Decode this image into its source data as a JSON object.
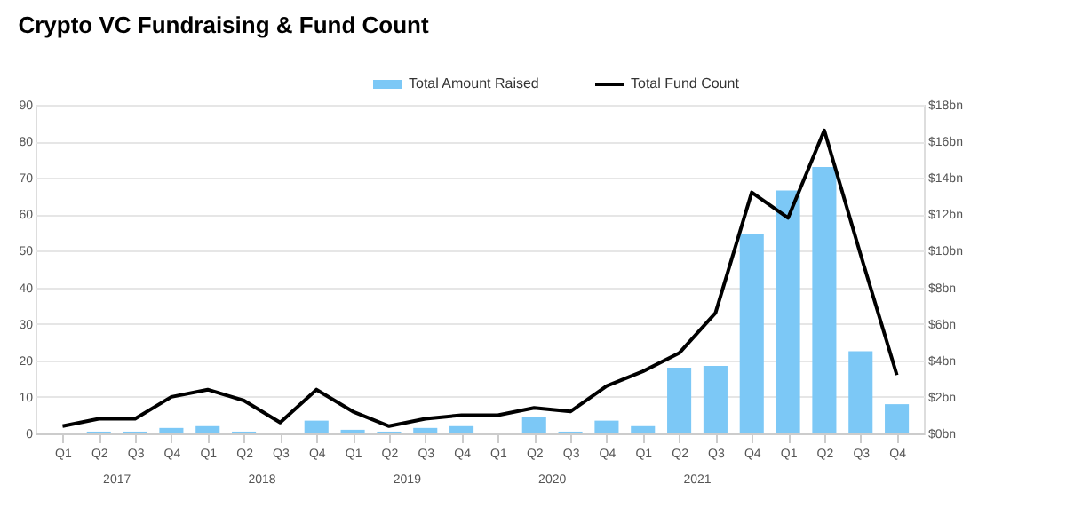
{
  "chart_data": {
    "type": "bar",
    "title": "Crypto VC Fundraising & Fund Count",
    "categories": [
      "Q1",
      "Q2",
      "Q3",
      "Q4",
      "Q1",
      "Q2",
      "Q3",
      "Q4",
      "Q1",
      "Q2",
      "Q3",
      "Q4",
      "Q1",
      "Q2",
      "Q3",
      "Q4",
      "Q1",
      "Q2",
      "Q3",
      "Q4",
      "Q1",
      "Q2",
      "Q3",
      "Q4"
    ],
    "series": [
      {
        "name": "Total Amount Raised",
        "axis": "y2",
        "color": "#7cc8f6",
        "values": [
          0.0,
          0.1,
          0.1,
          0.3,
          0.4,
          0.1,
          0.0,
          0.7,
          0.2,
          0.1,
          0.3,
          0.4,
          0.0,
          0.9,
          0.1,
          0.7,
          0.4,
          3.6,
          3.7,
          10.9,
          13.3,
          14.6,
          4.5,
          1.6
        ]
      },
      {
        "name": "Total Fund Count",
        "type": "line",
        "color": "#000000",
        "values": [
          2,
          4,
          4,
          10,
          12,
          9,
          3,
          12,
          6,
          2,
          4,
          5,
          5,
          7,
          6,
          13,
          17,
          22,
          33,
          66,
          59,
          83,
          49,
          16
        ]
      }
    ],
    "ylim": [
      0,
      90
    ],
    "yticks": [
      0,
      10,
      20,
      30,
      40,
      50,
      60,
      70,
      80,
      90
    ],
    "y2lim": [
      0,
      18
    ],
    "y2ticks": [
      {
        "value": 0,
        "label": "$0bn"
      },
      {
        "value": 2,
        "label": "$2bn"
      },
      {
        "value": 4,
        "label": "$4bn"
      },
      {
        "value": 6,
        "label": "$6bn"
      },
      {
        "value": 8,
        "label": "$8bn"
      },
      {
        "value": 10,
        "label": "$10bn"
      },
      {
        "value": 12,
        "label": "$12bn"
      },
      {
        "value": 14,
        "label": "$14bn"
      },
      {
        "value": 16,
        "label": "$16bn"
      },
      {
        "value": 18,
        "label": "$18bn"
      }
    ],
    "annotations": [
      "2017",
      "2018",
      "2019",
      "2020",
      "2021"
    ],
    "grid": "y",
    "legend": "top",
    "marker": "none",
    "line_style": "solid"
  }
}
